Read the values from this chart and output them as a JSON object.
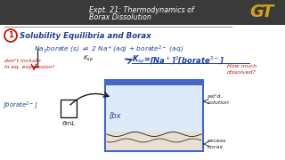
{
  "bg_color": "#d8d4ce",
  "title_line1": "Expt. 21: Thermodynamics of",
  "title_line2": "Borax Dissolution",
  "section_title": "Solubility Equilibria and Borax",
  "note_text1": "don't include",
  "note_text2": "in eq. expression!",
  "borate_label": "[borate²⁻]",
  "volume_label": "6mL",
  "satd_label1": "sat'd.",
  "satd_label2": "solution",
  "excess_label1": "excess",
  "excess_label2": "borax",
  "how_much1": "How much",
  "how_much2": "dissolved?",
  "gt_gold": "#d4a017",
  "blue": "#1e3c96",
  "red": "#cc1100",
  "black": "#1a1a1a",
  "white": "#ffffff",
  "dark_bg": "#2a2a2a",
  "beaker_blue": "#4466cc"
}
